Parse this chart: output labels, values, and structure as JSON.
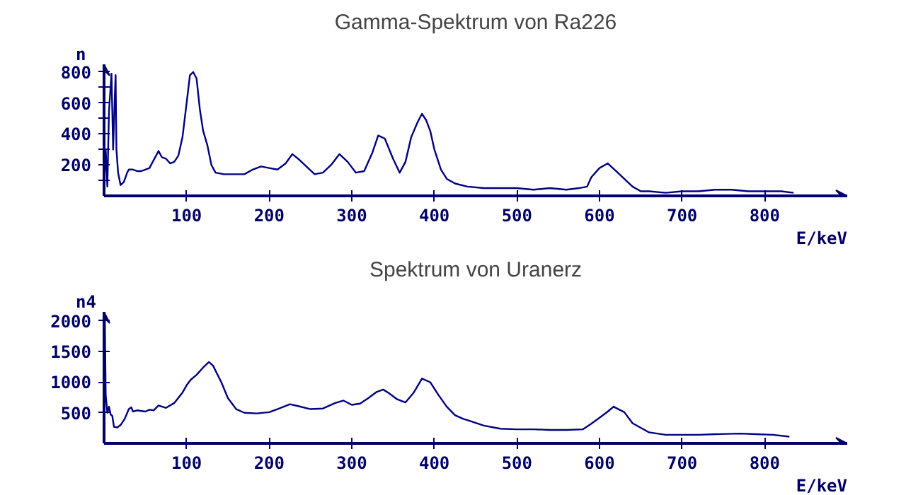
{
  "chart_data": [
    {
      "type": "line",
      "title": "Gamma-Spektrum von Ra226",
      "xlabel": "E/keV",
      "ylabel": "n",
      "xlim": [
        0,
        900
      ],
      "ylim": [
        0,
        850
      ],
      "xticks": [
        100,
        200,
        300,
        400,
        500,
        600,
        700,
        800
      ],
      "yticks": [
        {
          "value": 100,
          "label": null
        },
        200,
        {
          "value": 300,
          "label": null
        },
        400,
        {
          "value": 500,
          "label": null
        },
        600,
        {
          "value": 700,
          "label": null
        },
        800
      ],
      "grid": false,
      "marker": "none",
      "line_style": "solid",
      "series": [
        {
          "color": "#000080",
          "x": [
            0,
            2,
            4,
            6,
            9,
            11,
            13,
            14,
            15,
            17,
            20,
            24,
            28,
            30,
            35,
            40,
            45,
            50,
            55,
            60,
            66,
            70,
            75,
            80,
            85,
            90,
            95,
            100,
            104,
            108,
            112,
            116,
            120,
            125,
            130,
            135,
            145,
            160,
            170,
            180,
            190,
            200,
            210,
            220,
            228,
            235,
            245,
            255,
            265,
            275,
            285,
            295,
            305,
            315,
            325,
            332,
            340,
            350,
            358,
            365,
            372,
            380,
            385,
            390,
            395,
            400,
            408,
            415,
            425,
            440,
            460,
            480,
            500,
            520,
            540,
            560,
            575,
            585,
            590,
            600,
            610,
            620,
            630,
            640,
            650,
            660,
            680,
            700,
            720,
            740,
            760,
            780,
            800,
            820,
            835
          ],
          "values": [
            60,
            300,
            60,
            550,
            790,
            300,
            640,
            780,
            300,
            150,
            70,
            90,
            150,
            170,
            170,
            160,
            160,
            170,
            180,
            230,
            290,
            250,
            240,
            210,
            220,
            260,
            380,
            600,
            780,
            800,
            760,
            560,
            420,
            330,
            200,
            150,
            140,
            140,
            140,
            170,
            190,
            180,
            170,
            210,
            270,
            240,
            190,
            140,
            150,
            200,
            270,
            220,
            150,
            160,
            280,
            390,
            370,
            240,
            150,
            220,
            380,
            480,
            530,
            490,
            420,
            300,
            170,
            110,
            80,
            60,
            50,
            50,
            50,
            40,
            50,
            40,
            50,
            60,
            120,
            180,
            210,
            160,
            110,
            60,
            30,
            30,
            20,
            30,
            30,
            40,
            40,
            30,
            30,
            30,
            20
          ]
        }
      ]
    },
    {
      "type": "line",
      "title": "Spektrum von Uranerz",
      "xlabel": "E/keV",
      "ylabel": "n4",
      "xlim": [
        0,
        900
      ],
      "ylim": [
        0,
        2150
      ],
      "xticks": [
        100,
        200,
        300,
        400,
        500,
        600,
        700,
        800
      ],
      "yticks": [
        500,
        1000,
        1500,
        2000
      ],
      "grid": false,
      "marker": "none",
      "line_style": "solid",
      "series": [
        {
          "color": "#000080",
          "x": [
            0,
            1,
            2,
            4,
            6,
            8,
            10,
            12,
            16,
            20,
            25,
            30,
            33,
            35,
            40,
            50,
            55,
            60,
            66,
            75,
            85,
            95,
            100,
            105,
            112,
            120,
            127,
            132,
            142,
            150,
            160,
            170,
            185,
            200,
            210,
            225,
            235,
            250,
            265,
            280,
            290,
            300,
            310,
            320,
            330,
            338,
            345,
            355,
            365,
            375,
            385,
            395,
            405,
            415,
            425,
            435,
            440,
            460,
            480,
            500,
            520,
            540,
            560,
            580,
            590,
            600,
            610,
            617,
            630,
            640,
            660,
            680,
            700,
            720,
            740,
            770,
            790,
            810,
            830
          ],
          "values": [
            500,
            2000,
            800,
            500,
            600,
            470,
            450,
            270,
            260,
            300,
            400,
            560,
            590,
            520,
            540,
            520,
            550,
            540,
            620,
            580,
            660,
            830,
            950,
            1040,
            1120,
            1240,
            1330,
            1270,
            1000,
            740,
            560,
            500,
            490,
            510,
            560,
            640,
            610,
            560,
            570,
            660,
            700,
            630,
            650,
            740,
            840,
            880,
            820,
            720,
            670,
            830,
            1060,
            1000,
            790,
            600,
            460,
            400,
            380,
            290,
            240,
            230,
            230,
            220,
            220,
            230,
            320,
            420,
            520,
            600,
            510,
            330,
            180,
            140,
            140,
            140,
            150,
            160,
            150,
            140,
            110
          ]
        }
      ]
    }
  ]
}
